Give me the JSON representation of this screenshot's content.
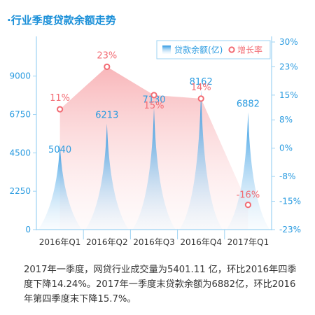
{
  "title": "·行业季度贷款余额走势",
  "description": "2017年一季度，网贷行业成交量为5401.11  亿，环比2016年四季度下降14.24%。2017年一季度末贷款余额为6882亿，环比2016年第四季度末下降15.7%。",
  "colors": {
    "title": "#1a8fd8",
    "axis": "#9dd3f3",
    "tick_label": "#2a9be0",
    "bar_top": "#1e90e0",
    "bar_bottom": "#e6f3fc",
    "line_fill": "#f7a9ad",
    "line_marker": "#f26b73",
    "line_label": "#f26b73",
    "bar_label": "#2a9be0",
    "category_label": "#333333"
  },
  "chart_data": {
    "type": "bar",
    "categories": [
      "2016年Q1",
      "2016年Q2",
      "2016年Q3",
      "2016年Q4",
      "2017年Q1"
    ],
    "series": [
      {
        "name": "贷款余额(亿)",
        "type": "bar",
        "axis": "left",
        "values": [
          5040,
          6213,
          7130,
          8162,
          6882
        ],
        "labels": [
          "5040",
          "6213",
          "7130",
          "8162",
          "6882"
        ]
      },
      {
        "name": "增长率",
        "type": "area",
        "axis": "right",
        "values": [
          11,
          23,
          15,
          14,
          -16
        ],
        "labels": [
          "11%",
          "23%",
          "15%",
          "14%",
          "-16%"
        ]
      }
    ],
    "left_axis": {
      "ticks": [
        "9000",
        "6750",
        "4500",
        "2250",
        "0"
      ],
      "ylim": [
        0,
        11000
      ]
    },
    "right_axis": {
      "ticks": [
        "30%",
        "23%",
        "15%",
        "8%",
        "0%",
        "-8%",
        "-15%",
        "-23%"
      ],
      "ylim": [
        -23,
        30
      ]
    },
    "legend": {
      "position": "top-right",
      "items": [
        "贷款余额(亿)",
        "增长率"
      ]
    },
    "grid": false
  }
}
